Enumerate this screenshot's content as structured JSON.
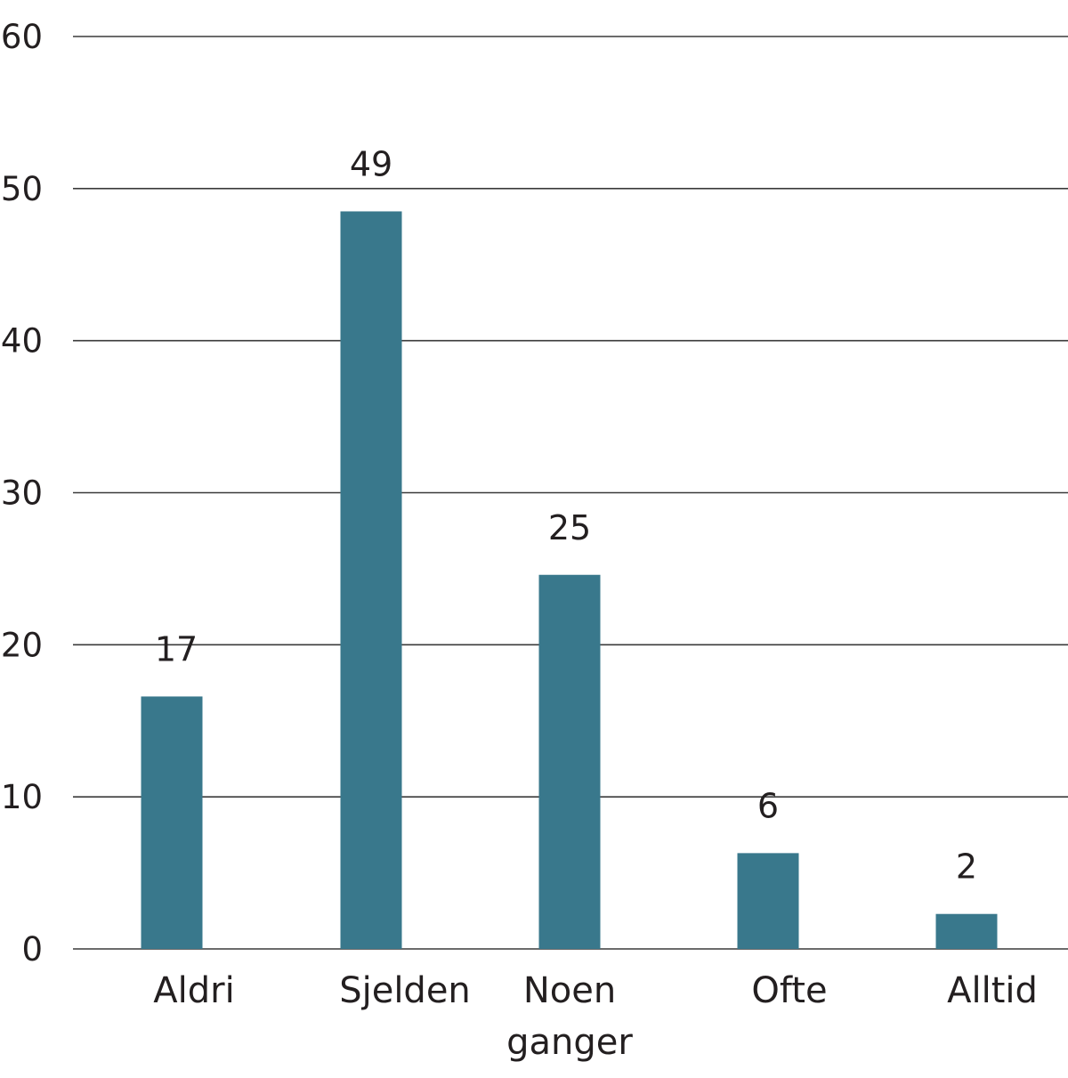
{
  "chart_data": {
    "type": "bar",
    "title": "",
    "xlabel": "",
    "ylabel": "",
    "ylim": [
      0,
      60
    ],
    "yticks": [
      "0",
      "10",
      "20",
      "30",
      "40",
      "50",
      "60"
    ],
    "grid": true,
    "categories": [
      "Aldri",
      "Sjelden",
      "Noen ganger",
      "Ofte",
      "Alltid"
    ],
    "category_lines": [
      [
        "Aldri"
      ],
      [
        "Sjelden"
      ],
      [
        "Noen",
        "ganger"
      ],
      [
        "Ofte"
      ],
      [
        "Alltid"
      ]
    ],
    "values": [
      16.6,
      48.5,
      24.6,
      6.3,
      2.3
    ],
    "data_labels": [
      "17",
      "49",
      "25",
      "6",
      "2"
    ],
    "bar_color": "#39788c",
    "grid_color": "#3a3a3a"
  }
}
